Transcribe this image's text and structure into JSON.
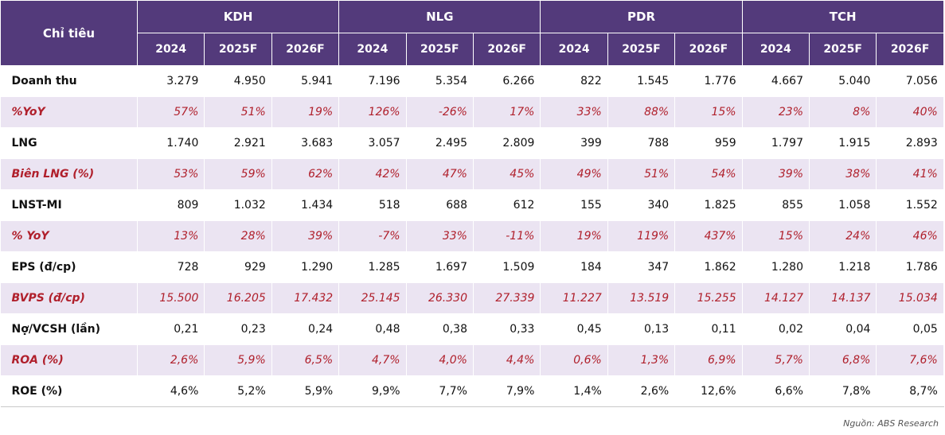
{
  "table": {
    "metric_header": "Chỉ tiêu",
    "tickers": [
      "KDH",
      "NLG",
      "PDR",
      "TCH"
    ],
    "years": [
      "2024",
      "2025F",
      "2026F",
      "2024",
      "2025F",
      "2026F",
      "2024",
      "2025F",
      "2026F",
      "2024",
      "2025F",
      "2026F"
    ],
    "rows": [
      {
        "label": "Doanh thu",
        "values": [
          "3.279",
          "4.950",
          "5.941",
          "7.196",
          "5.354",
          "6.266",
          "822",
          "1.545",
          "1.776",
          "4.667",
          "5.040",
          "7.056"
        ]
      },
      {
        "label": "%YoY",
        "values": [
          "57%",
          "51%",
          "19%",
          "126%",
          "-26%",
          "17%",
          "33%",
          "88%",
          "15%",
          "23%",
          "8%",
          "40%"
        ]
      },
      {
        "label": "LNG",
        "values": [
          "1.740",
          "2.921",
          "3.683",
          "3.057",
          "2.495",
          "2.809",
          "399",
          "788",
          "959",
          "1.797",
          "1.915",
          "2.893"
        ]
      },
      {
        "label": "Biên LNG (%)",
        "values": [
          "53%",
          "59%",
          "62%",
          "42%",
          "47%",
          "45%",
          "49%",
          "51%",
          "54%",
          "39%",
          "38%",
          "41%"
        ]
      },
      {
        "label": "LNST-MI",
        "values": [
          "809",
          "1.032",
          "1.434",
          "518",
          "688",
          "612",
          "155",
          "340",
          "1.825",
          "855",
          "1.058",
          "1.552"
        ]
      },
      {
        "label": "% YoY",
        "values": [
          "13%",
          "28%",
          "39%",
          "-7%",
          "33%",
          "-11%",
          "19%",
          "119%",
          "437%",
          "15%",
          "24%",
          "46%"
        ]
      },
      {
        "label": "EPS (đ/cp)",
        "values": [
          "728",
          "929",
          "1.290",
          "1.285",
          "1.697",
          "1.509",
          "184",
          "347",
          "1.862",
          "1.280",
          "1.218",
          "1.786"
        ]
      },
      {
        "label": "BVPS (đ/cp)",
        "values": [
          "15.500",
          "16.205",
          "17.432",
          "25.145",
          "26.330",
          "27.339",
          "11.227",
          "13.519",
          "15.255",
          "14.127",
          "14.137",
          "15.034"
        ]
      },
      {
        "label": "Nợ/VCSH (lần)",
        "values": [
          "0,21",
          "0,23",
          "0,24",
          "0,48",
          "0,38",
          "0,33",
          "0,45",
          "0,13",
          "0,11",
          "0,02",
          "0,04",
          "0,05"
        ]
      },
      {
        "label": "ROA (%)",
        "values": [
          "2,6%",
          "5,9%",
          "6,5%",
          "4,7%",
          "4,0%",
          "4,4%",
          "0,6%",
          "1,3%",
          "6,9%",
          "5,7%",
          "6,8%",
          "7,6%"
        ]
      },
      {
        "label": "ROE (%)",
        "values": [
          "4,6%",
          "5,2%",
          "5,9%",
          "9,9%",
          "7,7%",
          "7,9%",
          "1,4%",
          "2,6%",
          "12,6%",
          "6,6%",
          "7,8%",
          "8,7%"
        ]
      }
    ]
  },
  "source": "Nguồn: ABS Research",
  "colors": {
    "header_bg": "#533a7b",
    "highlight_bg": "#ebe4f2",
    "highlight_text": "#b0202c"
  }
}
